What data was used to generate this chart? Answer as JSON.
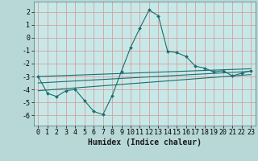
{
  "title": "",
  "xlabel": "Humidex (Indice chaleur)",
  "ylabel": "",
  "bg_color": "#b8d8d8",
  "plot_bg_color": "#c8e8e8",
  "grid_color": "#d4a0a0",
  "line_color": "#1a6e6e",
  "xlim": [
    -0.5,
    23.5
  ],
  "ylim": [
    -6.8,
    2.8
  ],
  "xticks": [
    0,
    1,
    2,
    3,
    4,
    5,
    6,
    7,
    8,
    9,
    10,
    11,
    12,
    13,
    14,
    15,
    16,
    17,
    18,
    19,
    20,
    21,
    22,
    23
  ],
  "yticks": [
    -6,
    -5,
    -4,
    -3,
    -2,
    -1,
    0,
    1,
    2
  ],
  "main_x": [
    0,
    1,
    2,
    3,
    4,
    5,
    6,
    7,
    8,
    9,
    10,
    11,
    12,
    13,
    14,
    15,
    16,
    17,
    18,
    19,
    20,
    21,
    22,
    23
  ],
  "main_y": [
    -3.0,
    -4.3,
    -4.55,
    -4.1,
    -4.0,
    -4.85,
    -5.7,
    -5.95,
    -4.5,
    -2.6,
    -0.75,
    0.75,
    2.15,
    1.7,
    -1.05,
    -1.15,
    -1.45,
    -2.2,
    -2.35,
    -2.65,
    -2.55,
    -2.95,
    -2.75,
    -2.55
  ],
  "reg_lines": [
    {
      "x0": 0,
      "y0": -3.0,
      "x1": 23,
      "y1": -2.4
    },
    {
      "x0": 0,
      "y0": -3.5,
      "x1": 23,
      "y1": -2.6
    },
    {
      "x0": 0,
      "y0": -4.1,
      "x1": 23,
      "y1": -2.85
    }
  ],
  "xlabel_fontsize": 7,
  "tick_fontsize": 6
}
